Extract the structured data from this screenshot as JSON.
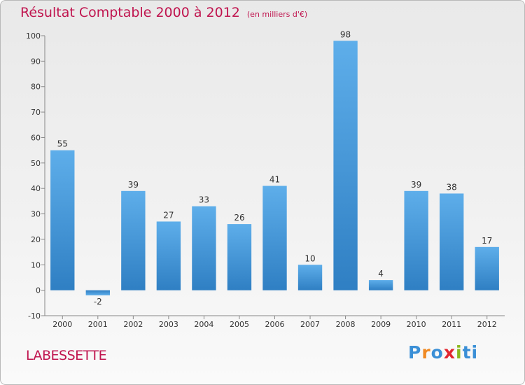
{
  "title": "Résultat Comptable 2000 à 2012",
  "subtitle": "(en milliers d'€)",
  "commune": "LABESSETTE",
  "logo": {
    "letters": [
      "P",
      "r",
      "o",
      "x",
      "i",
      "t",
      "i"
    ],
    "colors": [
      "#3a8fd6",
      "#f08a24",
      "#3a8fd6",
      "#e2262f",
      "#8ab81e",
      "#3a8fd6",
      "#3a8fd6"
    ]
  },
  "colors": {
    "bar": "#4f9fe0",
    "title": "#c0154f"
  },
  "chart_data": {
    "type": "bar",
    "title": "Résultat Comptable 2000 à 2012",
    "xlabel": "",
    "ylabel": "",
    "categories": [
      "2000",
      "2001",
      "2002",
      "2003",
      "2004",
      "2005",
      "2006",
      "2007",
      "2008",
      "2009",
      "2010",
      "2011",
      "2012"
    ],
    "values": [
      55,
      -2,
      39,
      27,
      33,
      26,
      41,
      10,
      98,
      4,
      39,
      38,
      17
    ],
    "ylim": [
      -10,
      100
    ],
    "yticks": [
      -10,
      0,
      10,
      20,
      30,
      40,
      50,
      60,
      70,
      80,
      90,
      100
    ],
    "grid": false
  }
}
